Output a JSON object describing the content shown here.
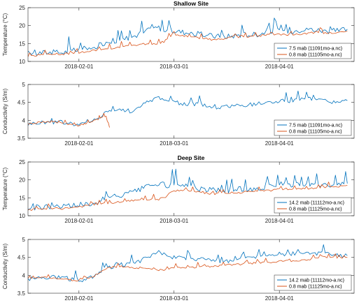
{
  "chart_data": [
    {
      "type": "line",
      "title": "Shallow Site",
      "ylabel": "Temperature (°C)",
      "xlabel": "",
      "xlim": [
        "2018-01-17",
        "2018-04-23"
      ],
      "ylim": [
        10,
        25
      ],
      "yticks": [
        10,
        15,
        20,
        25
      ],
      "xticks": [
        "2018-02-01",
        "2018-03-01",
        "2018-04-01"
      ],
      "grid": false,
      "legend_position": "bottom-right",
      "series": [
        {
          "name": "7.5 mab (11091mo-a.nc)",
          "color": "#0072BD",
          "x": [
            "2018-01-17",
            "2018-01-22",
            "2018-01-27",
            "2018-02-01",
            "2018-02-05",
            "2018-02-09",
            "2018-02-13",
            "2018-02-17",
            "2018-02-21",
            "2018-02-24",
            "2018-02-26",
            "2018-03-01",
            "2018-03-05",
            "2018-03-09",
            "2018-03-13",
            "2018-03-17",
            "2018-03-21",
            "2018-03-25",
            "2018-03-29",
            "2018-04-02",
            "2018-04-06",
            "2018-04-10",
            "2018-04-14",
            "2018-04-18",
            "2018-04-21"
          ],
          "y": [
            12.0,
            12.5,
            12.5,
            13.2,
            13.5,
            15.5,
            16.0,
            17.0,
            18.5,
            19.5,
            19.0,
            18.5,
            18.0,
            17.5,
            17.0,
            17.0,
            17.5,
            17.5,
            18.5,
            18.5,
            18.5,
            19.0,
            18.5,
            18.5,
            19.0
          ]
        },
        {
          "name": "0.8 mab (11105mo-a.nc)",
          "color": "#D95319",
          "x": [
            "2018-01-17",
            "2018-01-22",
            "2018-01-27",
            "2018-02-01",
            "2018-02-05",
            "2018-02-09",
            "2018-02-13",
            "2018-02-17",
            "2018-02-21",
            "2018-02-24",
            "2018-02-26",
            "2018-03-01",
            "2018-03-05",
            "2018-03-09",
            "2018-03-13",
            "2018-03-17",
            "2018-03-21",
            "2018-03-25",
            "2018-03-29",
            "2018-04-02",
            "2018-04-06",
            "2018-04-10",
            "2018-04-14",
            "2018-04-18",
            "2018-04-21"
          ],
          "y": [
            11.5,
            12.0,
            12.0,
            12.5,
            13.0,
            13.5,
            14.0,
            14.5,
            15.0,
            15.0,
            15.5,
            17.5,
            17.0,
            16.5,
            16.0,
            16.5,
            17.0,
            17.0,
            17.5,
            17.5,
            17.5,
            18.0,
            18.0,
            18.0,
            18.5
          ]
        }
      ]
    },
    {
      "type": "line",
      "title": "",
      "ylabel": "Conductivity (S/m)",
      "xlabel": "",
      "xlim": [
        "2018-01-17",
        "2018-04-23"
      ],
      "ylim": [
        3.5,
        5
      ],
      "yticks": [
        3.5,
        4,
        4.5,
        5
      ],
      "xticks": [
        "2018-02-01",
        "2018-03-01",
        "2018-04-01"
      ],
      "grid": false,
      "legend_position": "bottom-right",
      "series": [
        {
          "name": "7.5 mab (11091mo-a.nc)",
          "color": "#0072BD",
          "x": [
            "2018-01-17",
            "2018-01-22",
            "2018-01-27",
            "2018-02-01",
            "2018-02-05",
            "2018-02-09",
            "2018-02-13",
            "2018-02-17",
            "2018-02-21",
            "2018-02-24",
            "2018-02-26",
            "2018-03-01",
            "2018-03-05",
            "2018-03-09",
            "2018-03-13",
            "2018-03-17",
            "2018-03-21",
            "2018-03-25",
            "2018-03-29",
            "2018-04-02",
            "2018-04-06",
            "2018-04-10",
            "2018-04-14",
            "2018-04-18",
            "2018-04-21"
          ],
          "y": [
            3.9,
            3.95,
            3.95,
            3.88,
            3.95,
            4.25,
            4.3,
            4.25,
            4.5,
            4.65,
            4.6,
            4.5,
            4.45,
            4.45,
            4.35,
            4.4,
            4.4,
            4.45,
            4.5,
            4.55,
            4.55,
            4.6,
            4.55,
            4.5,
            4.55
          ]
        },
        {
          "name": "0.8 mab (11105mo-a.nc)",
          "color": "#D95319",
          "x": [
            "2018-01-17",
            "2018-01-21",
            "2018-01-25",
            "2018-01-29",
            "2018-02-01",
            "2018-02-04",
            "2018-02-07",
            "2018-02-09",
            "2018-02-10"
          ],
          "y": [
            3.9,
            3.95,
            3.95,
            3.9,
            3.85,
            3.95,
            4.05,
            4.1,
            3.8
          ]
        }
      ]
    },
    {
      "type": "line",
      "title": "Deep Site",
      "ylabel": "Temperature (°C)",
      "xlabel": "",
      "xlim": [
        "2018-01-17",
        "2018-04-23"
      ],
      "ylim": [
        10,
        25
      ],
      "yticks": [
        10,
        15,
        20,
        25
      ],
      "xticks": [
        "2018-02-01",
        "2018-03-01",
        "2018-04-01"
      ],
      "grid": false,
      "legend_position": "bottom-right",
      "series": [
        {
          "name": "14.2 mab (11112mo-a.nc)",
          "color": "#0072BD",
          "x": [
            "2018-01-17",
            "2018-01-22",
            "2018-01-27",
            "2018-02-01",
            "2018-02-05",
            "2018-02-09",
            "2018-02-13",
            "2018-02-17",
            "2018-02-21",
            "2018-02-24",
            "2018-02-26",
            "2018-03-01",
            "2018-03-05",
            "2018-03-09",
            "2018-03-13",
            "2018-03-17",
            "2018-03-21",
            "2018-03-25",
            "2018-03-29",
            "2018-04-02",
            "2018-04-06",
            "2018-04-10",
            "2018-04-14",
            "2018-04-18",
            "2018-04-21"
          ],
          "y": [
            12.0,
            12.5,
            12.5,
            13.0,
            13.5,
            15.0,
            15.5,
            16.5,
            18.0,
            19.0,
            18.5,
            18.5,
            18.0,
            17.5,
            17.0,
            17.0,
            17.5,
            17.5,
            18.0,
            18.5,
            18.5,
            18.5,
            18.5,
            18.5,
            19.0
          ]
        },
        {
          "name": "0.8 mab (11125mo-a.nc)",
          "color": "#D95319",
          "x": [
            "2018-01-17",
            "2018-01-22",
            "2018-01-27",
            "2018-02-01",
            "2018-02-05",
            "2018-02-09",
            "2018-02-13",
            "2018-02-17",
            "2018-02-21",
            "2018-02-24",
            "2018-02-26",
            "2018-03-01",
            "2018-03-05",
            "2018-03-09",
            "2018-03-13",
            "2018-03-17",
            "2018-03-21",
            "2018-03-25",
            "2018-03-29",
            "2018-04-02",
            "2018-04-06",
            "2018-04-10",
            "2018-04-14",
            "2018-04-18",
            "2018-04-21"
          ],
          "y": [
            11.5,
            12.0,
            12.0,
            12.5,
            13.0,
            13.5,
            13.8,
            14.2,
            14.5,
            14.5,
            15.0,
            17.0,
            17.0,
            16.5,
            16.0,
            16.5,
            16.5,
            17.0,
            17.0,
            17.5,
            17.5,
            17.5,
            18.0,
            18.0,
            18.5
          ]
        }
      ]
    },
    {
      "type": "line",
      "title": "",
      "ylabel": "Conductivity (S/m)",
      "xlabel": "",
      "xlim": [
        "2018-01-17",
        "2018-04-23"
      ],
      "ylim": [
        3.5,
        5
      ],
      "yticks": [
        3.5,
        4,
        4.5,
        5
      ],
      "xticks": [
        "2018-02-01",
        "2018-03-01",
        "2018-04-01"
      ],
      "grid": false,
      "legend_position": "bottom-right",
      "series": [
        {
          "name": "14.2 mab (11112mo-a.nc)",
          "color": "#0072BD",
          "x": [
            "2018-01-17",
            "2018-01-22",
            "2018-01-27",
            "2018-02-01",
            "2018-02-05",
            "2018-02-09",
            "2018-02-13",
            "2018-02-17",
            "2018-02-21",
            "2018-02-24",
            "2018-02-26",
            "2018-03-01",
            "2018-03-05",
            "2018-03-09",
            "2018-03-13",
            "2018-03-17",
            "2018-03-21",
            "2018-03-25",
            "2018-03-29",
            "2018-04-02",
            "2018-04-06",
            "2018-04-10",
            "2018-04-14",
            "2018-04-18",
            "2018-04-21"
          ],
          "y": [
            3.9,
            3.95,
            3.95,
            3.85,
            3.95,
            4.2,
            4.3,
            4.3,
            4.5,
            4.65,
            4.6,
            4.5,
            4.45,
            4.45,
            4.4,
            4.4,
            4.45,
            4.5,
            4.55,
            4.6,
            4.6,
            4.6,
            4.6,
            4.55,
            4.55
          ]
        },
        {
          "name": "0.8 mab (11125mo-a.nc)",
          "color": "#D95319",
          "x": [
            "2018-01-17",
            "2018-01-22",
            "2018-01-27",
            "2018-02-01",
            "2018-02-05",
            "2018-02-09",
            "2018-02-13",
            "2018-02-17",
            "2018-02-21",
            "2018-02-24",
            "2018-02-26",
            "2018-03-01",
            "2018-03-05",
            "2018-03-09",
            "2018-03-13",
            "2018-03-17",
            "2018-03-21",
            "2018-03-25",
            "2018-03-29",
            "2018-04-02",
            "2018-04-06",
            "2018-04-10",
            "2018-04-14",
            "2018-04-18",
            "2018-04-21"
          ],
          "y": [
            3.9,
            3.95,
            3.9,
            3.85,
            3.95,
            4.2,
            4.25,
            4.2,
            4.2,
            4.15,
            4.15,
            4.2,
            4.2,
            4.25,
            4.25,
            4.3,
            4.3,
            4.35,
            4.35,
            4.4,
            4.4,
            4.45,
            4.5,
            4.5,
            4.5
          ]
        }
      ]
    }
  ]
}
